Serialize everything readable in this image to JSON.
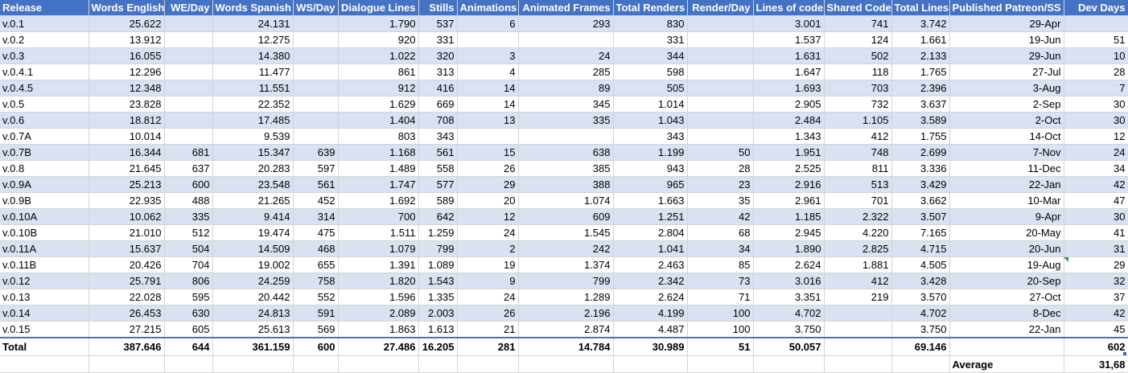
{
  "columns": [
    "Release",
    "Words English",
    "WE/Day",
    "Words Spanish",
    "WS/Day",
    "Dialogue Lines",
    "Stills",
    "Animations",
    "Animated Frames",
    "Total Renders",
    "Render/Day",
    "Lines of code",
    "Shared Code",
    "Total Lines",
    "Published Patreon/SS",
    "Dev Days"
  ],
  "rows": [
    [
      "v.0.1",
      "25.622",
      "",
      "24.131",
      "",
      "1.790",
      "537",
      "6",
      "293",
      "830",
      "",
      "3.001",
      "741",
      "3.742",
      "29-Apr",
      ""
    ],
    [
      "v.0.2",
      "13.912",
      "",
      "12.275",
      "",
      "920",
      "331",
      "",
      "",
      "331",
      "",
      "1.537",
      "124",
      "1.661",
      "19-Jun",
      "51"
    ],
    [
      "v.0.3",
      "16.055",
      "",
      "14.380",
      "",
      "1.022",
      "320",
      "3",
      "24",
      "344",
      "",
      "1.631",
      "502",
      "2.133",
      "29-Jun",
      "10"
    ],
    [
      "v.0.4.1",
      "12.296",
      "",
      "11.477",
      "",
      "861",
      "313",
      "4",
      "285",
      "598",
      "",
      "1.647",
      "118",
      "1.765",
      "27-Jul",
      "28"
    ],
    [
      "v.0.4.5",
      "12.348",
      "",
      "11.551",
      "",
      "912",
      "416",
      "14",
      "89",
      "505",
      "",
      "1.693",
      "703",
      "2.396",
      "3-Aug",
      "7"
    ],
    [
      "v.0.5",
      "23.828",
      "",
      "22.352",
      "",
      "1.629",
      "669",
      "14",
      "345",
      "1.014",
      "",
      "2.905",
      "732",
      "3.637",
      "2-Sep",
      "30"
    ],
    [
      "v.0.6",
      "18.812",
      "",
      "17.485",
      "",
      "1.404",
      "708",
      "13",
      "335",
      "1.043",
      "",
      "2.484",
      "1.105",
      "3.589",
      "2-Oct",
      "30"
    ],
    [
      "v.0.7A",
      "10.014",
      "",
      "9.539",
      "",
      "803",
      "343",
      "",
      "",
      "343",
      "",
      "1.343",
      "412",
      "1.755",
      "14-Oct",
      "12"
    ],
    [
      "v.0.7B",
      "16.344",
      "681",
      "15.347",
      "639",
      "1.168",
      "561",
      "15",
      "638",
      "1.199",
      "50",
      "1.951",
      "748",
      "2.699",
      "7-Nov",
      "24"
    ],
    [
      "v.0.8",
      "21.645",
      "637",
      "20.283",
      "597",
      "1.489",
      "558",
      "26",
      "385",
      "943",
      "28",
      "2.525",
      "811",
      "3.336",
      "11-Dec",
      "34"
    ],
    [
      "v.0.9A",
      "25.213",
      "600",
      "23.548",
      "561",
      "1.747",
      "577",
      "29",
      "388",
      "965",
      "23",
      "2.916",
      "513",
      "3.429",
      "22-Jan",
      "42"
    ],
    [
      "v.0.9B",
      "22.935",
      "488",
      "21.265",
      "452",
      "1.692",
      "589",
      "20",
      "1.074",
      "1.663",
      "35",
      "2.961",
      "701",
      "3.662",
      "10-Mar",
      "47"
    ],
    [
      "v.0.10A",
      "10.062",
      "335",
      "9.414",
      "314",
      "700",
      "642",
      "12",
      "609",
      "1.251",
      "42",
      "1.185",
      "2.322",
      "3.507",
      "9-Apr",
      "30"
    ],
    [
      "v.0.10B",
      "21.010",
      "512",
      "19.474",
      "475",
      "1.511",
      "1.259",
      "24",
      "1.545",
      "2.804",
      "68",
      "2.945",
      "4.220",
      "7.165",
      "20-May",
      "41"
    ],
    [
      "v.0.11A",
      "15.637",
      "504",
      "14.509",
      "468",
      "1.079",
      "799",
      "2",
      "242",
      "1.041",
      "34",
      "1.890",
      "2.825",
      "4.715",
      "20-Jun",
      "31"
    ],
    [
      "v.0.11B",
      "20.426",
      "704",
      "19.002",
      "655",
      "1.391",
      "1.089",
      "19",
      "1.374",
      "2.463",
      "85",
      "2.624",
      "1.881",
      "4.505",
      "19-Aug",
      "29"
    ],
    [
      "v.0.12",
      "25.791",
      "806",
      "24.259",
      "758",
      "1.820",
      "1.543",
      "9",
      "799",
      "2.342",
      "73",
      "3.016",
      "412",
      "3.428",
      "20-Sep",
      "32"
    ],
    [
      "v.0.13",
      "22.028",
      "595",
      "20.442",
      "552",
      "1.596",
      "1.335",
      "24",
      "1.289",
      "2.624",
      "71",
      "3.351",
      "219",
      "3.570",
      "27-Oct",
      "37"
    ],
    [
      "v.0.14",
      "26.453",
      "630",
      "24.813",
      "591",
      "2.089",
      "2.003",
      "26",
      "2.196",
      "4.199",
      "100",
      "4.702",
      "",
      "4.702",
      "8-Dec",
      "42"
    ],
    [
      "v.0.15",
      "27.215",
      "605",
      "25.613",
      "569",
      "1.863",
      "1.613",
      "21",
      "2.874",
      "4.487",
      "100",
      "3.750",
      "",
      "3.750",
      "22-Jan",
      "45"
    ]
  ],
  "total": [
    "Total",
    "387.646",
    "644",
    "361.159",
    "600",
    "27.486",
    "16.205",
    "281",
    "14.784",
    "30.989",
    "51",
    "50.057",
    "",
    "69.146",
    "",
    "602"
  ],
  "average": {
    "label": "Average",
    "value": "31,68"
  },
  "colors": {
    "header": "#4472c4",
    "band": "#d9e1f2",
    "grid": "#d4d4d4"
  }
}
